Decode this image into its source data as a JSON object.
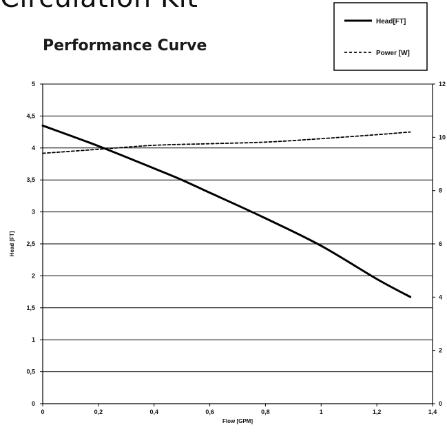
{
  "page": {
    "heading": "Circulation Kit",
    "chart_title": "Performance Curve"
  },
  "chart_data": {
    "type": "line",
    "xlabel": "Flow [GPM]",
    "ylabel": "Head [FT]",
    "xlim": [
      0,
      1.4
    ],
    "ylim": [
      0,
      5
    ],
    "y2lim": [
      0,
      12
    ],
    "x_ticks": [
      "0",
      "0,2",
      "0,4",
      "0,6",
      "0,8",
      "1",
      "1,2",
      "1,4"
    ],
    "y_ticks": [
      "0",
      "0,5",
      "1",
      "1,5",
      "2",
      "2,5",
      "3",
      "3,5",
      "4",
      "4,5",
      "5"
    ],
    "y2_ticks": [
      "0",
      "2",
      "4",
      "6",
      "8",
      "10",
      "12"
    ],
    "grid": "horizontal",
    "legend_position": "top-right",
    "series": [
      {
        "name": "Head[FT]",
        "axis": "left",
        "style": "solid",
        "color": "#000000",
        "x": [
          0,
          0.2,
          0.4,
          0.5,
          0.6,
          0.8,
          1.0,
          1.2,
          1.32
        ],
        "y": [
          4.35,
          4.03,
          3.68,
          3.5,
          3.3,
          2.9,
          2.47,
          1.95,
          1.67
        ]
      },
      {
        "name": "Power [W]",
        "axis": "right",
        "style": "dashed",
        "color": "#000000",
        "x": [
          0,
          0.2,
          0.4,
          0.6,
          0.8,
          1.0,
          1.2,
          1.32
        ],
        "y": [
          9.4,
          9.55,
          9.7,
          9.76,
          9.82,
          9.95,
          10.1,
          10.2
        ]
      }
    ]
  }
}
